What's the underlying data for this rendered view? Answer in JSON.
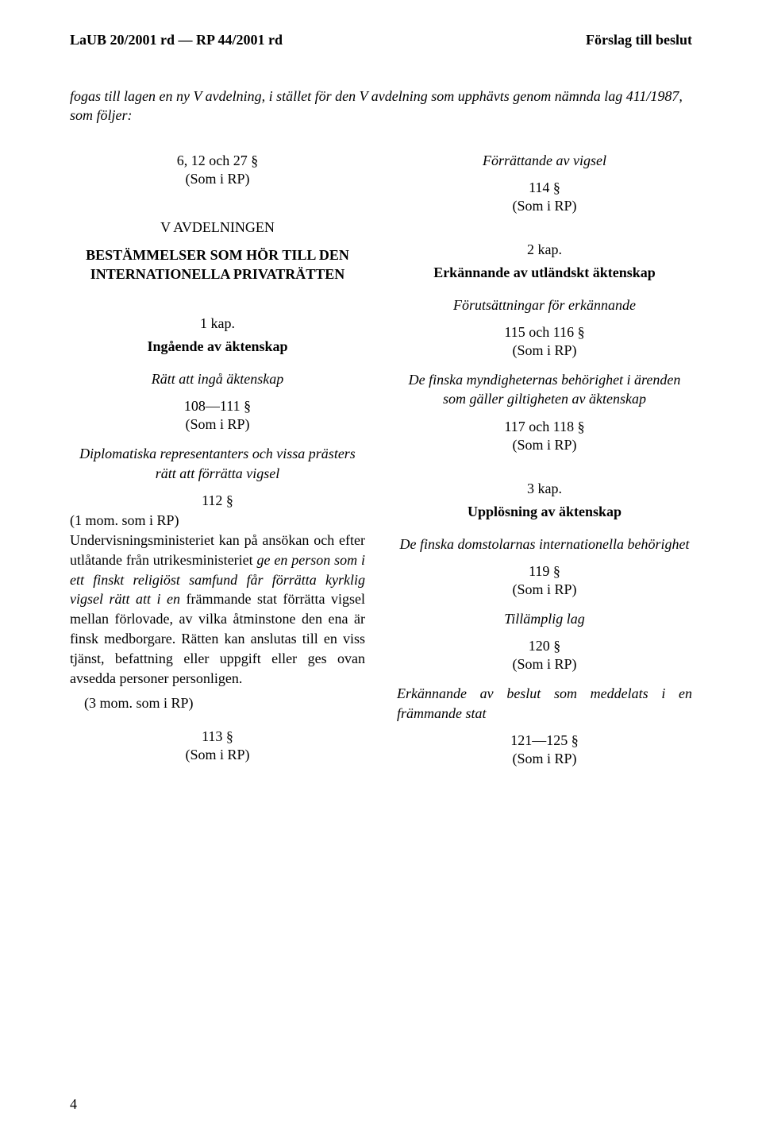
{
  "header": {
    "left": "LaUB 20/2001 rd — RP 44/2001 rd",
    "right": "Förslag till beslut"
  },
  "intro": {
    "prefix_italic": "fogas",
    "rest": " till lagen en ny V avdelning, i stället för den V avdelning som upphävts genom nämnda lag 411/1987, som följer:"
  },
  "left": {
    "s6_12_27": "6, 12 och 27 §",
    "som": "(Som i RP)",
    "avd": "V AVDELNINGEN",
    "bold_head": "BESTÄMMELSER SOM HÖR TILL DEN INTERNATIONELLA PRIVATRÄTTEN",
    "kap1": "1 kap.",
    "ingaende": "Ingående av äktenskap",
    "ratt": "Rätt att ingå äktenskap",
    "s108_111": "108—111 §",
    "diplo": "Diplomatiska representanters och vissa prästers rätt att förrätta vigsel",
    "s112": "112 §",
    "p112_mom": "(1 mom. som i RP)",
    "p112_body_1a": "Undervisningsministeriet kan på ansökan och efter utlåtande från utrikesministeriet ",
    "p112_body_1b_it": "ge en person som i ett finskt religiöst samfund får förrätta kyrklig vigsel rätt att i en",
    "p112_body_1c": " främmande stat förrätta vigsel mellan förlovade, av vilka åtminstone den ena är finsk medborgare. Rätten kan anslutas till en viss tjänst, befattning eller uppgift eller ges ovan avsedda personer personligen.",
    "p112_mom3": "(3 mom. som i RP)",
    "s113": "113 §"
  },
  "right": {
    "forrattande": "Förrättande av vigsel",
    "s114": "114 §",
    "som": "(Som i RP)",
    "kap2": "2 kap.",
    "erk_utl": "Erkännande av utländskt äktenskap",
    "forut": "Förutsättningar för erkännande",
    "s115_116": "115 och 116 §",
    "de_finska_myndig": "De finska myndigheternas behörighet i ärenden som gäller giltigheten av äktenskap",
    "s117_118": "117 och 118 §",
    "kap3": "3 kap.",
    "upplosning": "Upplösning av äktenskap",
    "de_finska_domstol": "De finska domstolarnas internationella behörighet",
    "s119": "119 §",
    "tillamplig": "Tillämplig lag",
    "s120": "120 §",
    "erk_beslut": "Erkännande av beslut som meddelats i en främmande stat",
    "s121_125": "121—125 §"
  },
  "page_number": "4",
  "colors": {
    "text": "#000000",
    "bg": "#ffffff"
  }
}
